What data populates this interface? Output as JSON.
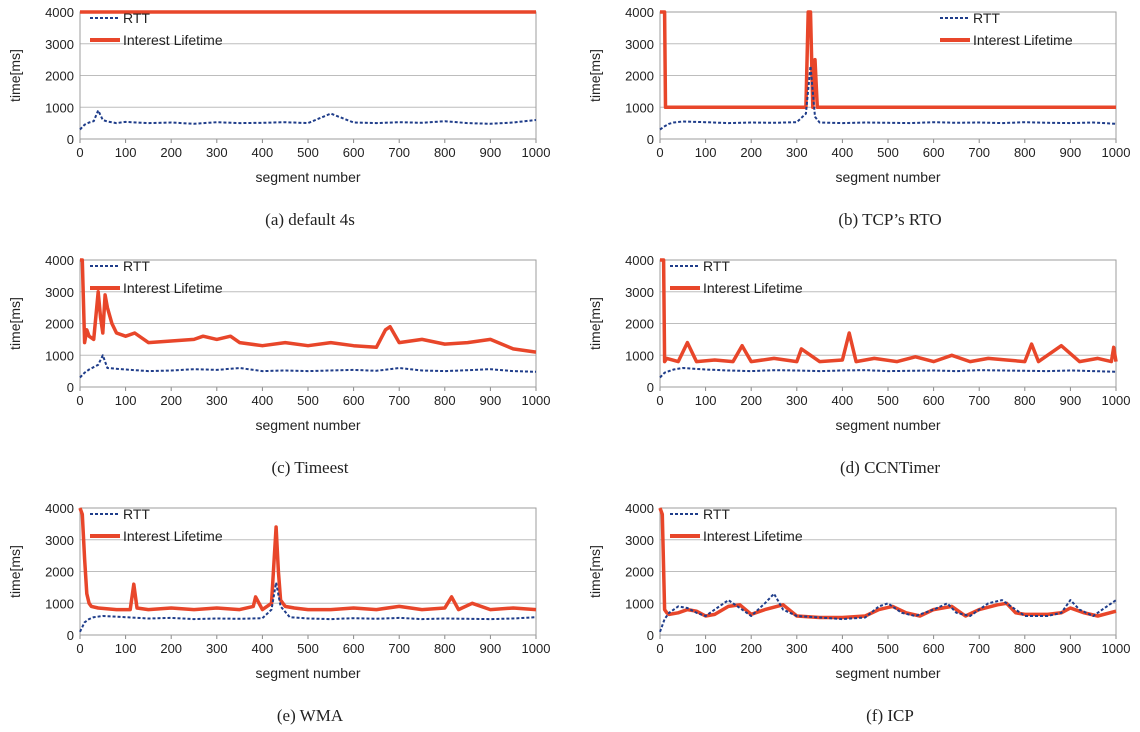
{
  "chart_data": [
    {
      "type": "line",
      "caption": "(a) default 4s",
      "xlabel": "segment number",
      "ylabel": "time[ms]",
      "xlim": [
        0,
        1000
      ],
      "ylim": [
        0,
        4000
      ],
      "xticks": [
        "0",
        "100",
        "200",
        "300",
        "400",
        "500",
        "600",
        "700",
        "800",
        "900",
        "1000"
      ],
      "yticks": [
        "0",
        "1000",
        "2000",
        "3000",
        "4000"
      ],
      "grid": true,
      "legend_position": "top-left",
      "series": [
        {
          "name": "RTT",
          "color": "#1f3d8a",
          "style": "dashed",
          "x": [
            0,
            10,
            20,
            30,
            40,
            50,
            60,
            80,
            100,
            150,
            200,
            250,
            300,
            350,
            400,
            450,
            500,
            550,
            600,
            650,
            700,
            750,
            800,
            850,
            900,
            950,
            1000
          ],
          "y": [
            300,
            450,
            520,
            560,
            900,
            600,
            550,
            500,
            540,
            500,
            520,
            480,
            530,
            500,
            510,
            530,
            500,
            800,
            520,
            500,
            530,
            510,
            560,
            500,
            480,
            520,
            600
          ]
        },
        {
          "name": "Interest Lifetime",
          "color": "#e8462a",
          "style": "solid",
          "x": [
            0,
            1000
          ],
          "y": [
            4000,
            4000
          ]
        }
      ]
    },
    {
      "type": "line",
      "caption": "(b) TCP’s RTO",
      "xlabel": "segment number",
      "ylabel": "time[ms]",
      "xlim": [
        0,
        1000
      ],
      "ylim": [
        0,
        4000
      ],
      "xticks": [
        "0",
        "100",
        "200",
        "300",
        "400",
        "500",
        "600",
        "700",
        "800",
        "900",
        "1000"
      ],
      "yticks": [
        "0",
        "1000",
        "2000",
        "3000",
        "4000"
      ],
      "grid": true,
      "legend_position": "top-right",
      "series": [
        {
          "name": "RTT",
          "color": "#1f3d8a",
          "style": "dashed",
          "x": [
            0,
            10,
            20,
            30,
            50,
            100,
            150,
            200,
            250,
            300,
            320,
            330,
            340,
            350,
            400,
            450,
            500,
            550,
            600,
            650,
            700,
            750,
            800,
            850,
            900,
            950,
            1000
          ],
          "y": [
            300,
            400,
            480,
            520,
            550,
            530,
            500,
            520,
            510,
            530,
            800,
            2300,
            700,
            520,
            500,
            520,
            510,
            500,
            530,
            510,
            520,
            500,
            530,
            510,
            500,
            520,
            480
          ]
        },
        {
          "name": "Interest Lifetime",
          "color": "#e8462a",
          "style": "solid",
          "x": [
            0,
            10,
            12,
            320,
            325,
            330,
            335,
            340,
            345,
            1000
          ],
          "y": [
            4000,
            4000,
            1000,
            1000,
            4000,
            4000,
            1000,
            2500,
            1000,
            1000
          ]
        }
      ]
    },
    {
      "type": "line",
      "caption": "(c) Timeest",
      "xlabel": "segment number",
      "ylabel": "time[ms]",
      "xlim": [
        0,
        1000
      ],
      "ylim": [
        0,
        4000
      ],
      "xticks": [
        "0",
        "100",
        "200",
        "300",
        "400",
        "500",
        "600",
        "700",
        "800",
        "900",
        "1000"
      ],
      "yticks": [
        "0",
        "1000",
        "2000",
        "3000",
        "4000"
      ],
      "grid": true,
      "legend_position": "top-left",
      "series": [
        {
          "name": "RTT",
          "color": "#1f3d8a",
          "style": "dashed",
          "x": [
            0,
            10,
            20,
            40,
            50,
            60,
            100,
            150,
            200,
            250,
            300,
            350,
            400,
            450,
            500,
            550,
            600,
            650,
            700,
            750,
            800,
            850,
            900,
            950,
            1000
          ],
          "y": [
            300,
            450,
            550,
            700,
            1000,
            600,
            550,
            500,
            520,
            560,
            540,
            600,
            500,
            520,
            500,
            520,
            540,
            510,
            600,
            520,
            500,
            530,
            560,
            500,
            480
          ]
        },
        {
          "name": "Interest Lifetime",
          "color": "#e8462a",
          "style": "solid",
          "x": [
            0,
            5,
            10,
            15,
            20,
            30,
            40,
            45,
            50,
            55,
            60,
            70,
            80,
            100,
            120,
            150,
            200,
            250,
            270,
            300,
            330,
            350,
            400,
            450,
            500,
            550,
            600,
            650,
            670,
            680,
            700,
            750,
            800,
            850,
            900,
            950,
            1000
          ],
          "y": [
            4000,
            4000,
            1400,
            1800,
            1600,
            1500,
            3000,
            2200,
            1700,
            2900,
            2500,
            2000,
            1700,
            1600,
            1700,
            1400,
            1450,
            1500,
            1600,
            1500,
            1600,
            1400,
            1300,
            1400,
            1300,
            1400,
            1300,
            1250,
            1800,
            1900,
            1400,
            1500,
            1350,
            1400,
            1500,
            1200,
            1100
          ]
        }
      ]
    },
    {
      "type": "line",
      "caption": "(d) CCNTimer",
      "xlabel": "segment number",
      "ylabel": "time[ms]",
      "xlim": [
        0,
        1000
      ],
      "ylim": [
        0,
        4000
      ],
      "xticks": [
        "0",
        "100",
        "200",
        "300",
        "400",
        "500",
        "600",
        "700",
        "800",
        "900",
        "1000"
      ],
      "yticks": [
        "0",
        "1000",
        "2000",
        "3000",
        "4000"
      ],
      "grid": true,
      "legend_position": "top-left",
      "series": [
        {
          "name": "RTT",
          "color": "#1f3d8a",
          "style": "dashed",
          "x": [
            0,
            10,
            20,
            30,
            50,
            100,
            150,
            200,
            250,
            300,
            350,
            400,
            450,
            500,
            550,
            600,
            650,
            700,
            750,
            800,
            850,
            900,
            950,
            1000
          ],
          "y": [
            300,
            450,
            500,
            550,
            600,
            550,
            520,
            500,
            530,
            520,
            500,
            520,
            530,
            500,
            510,
            520,
            500,
            530,
            520,
            510,
            500,
            520,
            500,
            480
          ]
        },
        {
          "name": "Interest Lifetime",
          "color": "#e8462a",
          "style": "solid",
          "x": [
            0,
            8,
            10,
            15,
            40,
            60,
            80,
            120,
            160,
            180,
            200,
            250,
            300,
            310,
            350,
            400,
            415,
            430,
            470,
            520,
            560,
            600,
            640,
            680,
            720,
            760,
            800,
            815,
            830,
            880,
            920,
            960,
            990,
            995,
            1000
          ],
          "y": [
            4000,
            4000,
            800,
            900,
            800,
            1400,
            800,
            850,
            800,
            1300,
            800,
            900,
            800,
            1200,
            800,
            850,
            1700,
            800,
            900,
            800,
            950,
            800,
            1000,
            800,
            900,
            850,
            800,
            1350,
            800,
            1300,
            800,
            900,
            800,
            1250,
            800
          ]
        }
      ]
    },
    {
      "type": "line",
      "caption": "(e) WMA",
      "xlabel": "segment number",
      "ylabel": "time[ms]",
      "xlim": [
        0,
        1000
      ],
      "ylim": [
        0,
        4000
      ],
      "xticks": [
        "0",
        "100",
        "200",
        "300",
        "400",
        "500",
        "600",
        "700",
        "800",
        "900",
        "1000"
      ],
      "yticks": [
        "0",
        "1000",
        "2000",
        "3000",
        "4000"
      ],
      "grid": true,
      "legend_position": "top-left",
      "series": [
        {
          "name": "RTT",
          "color": "#1f3d8a",
          "style": "dashed",
          "x": [
            0,
            10,
            20,
            30,
            50,
            100,
            150,
            200,
            250,
            300,
            350,
            400,
            420,
            430,
            440,
            460,
            500,
            550,
            600,
            650,
            700,
            750,
            800,
            850,
            900,
            950,
            1000
          ],
          "y": [
            100,
            400,
            500,
            560,
            600,
            560,
            520,
            540,
            500,
            520,
            510,
            530,
            800,
            1650,
            900,
            560,
            520,
            500,
            530,
            510,
            540,
            500,
            520,
            510,
            500,
            520,
            560
          ]
        },
        {
          "name": "Interest Lifetime",
          "color": "#e8462a",
          "style": "solid",
          "x": [
            0,
            5,
            10,
            15,
            20,
            25,
            40,
            80,
            110,
            118,
            125,
            150,
            200,
            250,
            300,
            350,
            380,
            385,
            400,
            420,
            430,
            435,
            440,
            450,
            470,
            500,
            550,
            600,
            650,
            700,
            750,
            800,
            815,
            830,
            860,
            900,
            950,
            1000
          ],
          "y": [
            4000,
            3800,
            2400,
            1300,
            1000,
            900,
            850,
            800,
            800,
            1600,
            850,
            800,
            850,
            800,
            850,
            800,
            900,
            1200,
            800,
            1000,
            3400,
            2000,
            1100,
            900,
            850,
            800,
            800,
            850,
            800,
            900,
            800,
            850,
            1200,
            800,
            1000,
            800,
            850,
            800
          ]
        }
      ]
    },
    {
      "type": "line",
      "caption": "(f) ICP",
      "xlabel": "segment number",
      "ylabel": "time[ms]",
      "xlim": [
        0,
        1000
      ],
      "ylim": [
        0,
        4000
      ],
      "xticks": [
        "0",
        "100",
        "200",
        "300",
        "400",
        "500",
        "600",
        "700",
        "800",
        "900",
        "1000"
      ],
      "yticks": [
        "0",
        "1000",
        "2000",
        "3000",
        "4000"
      ],
      "grid": true,
      "legend_position": "top-left",
      "series": [
        {
          "name": "RTT",
          "color": "#1f3d8a",
          "style": "dashed",
          "x": [
            0,
            10,
            20,
            40,
            60,
            80,
            100,
            120,
            150,
            170,
            200,
            230,
            250,
            270,
            300,
            350,
            400,
            450,
            480,
            500,
            530,
            560,
            600,
            630,
            650,
            680,
            720,
            750,
            780,
            800,
            850,
            880,
            900,
            920,
            950,
            980,
            1000
          ],
          "y": [
            100,
            500,
            700,
            900,
            850,
            700,
            600,
            800,
            1100,
            900,
            600,
            1000,
            1300,
            800,
            600,
            550,
            500,
            550,
            900,
            1000,
            700,
            600,
            800,
            1000,
            700,
            600,
            1000,
            1100,
            800,
            600,
            600,
            700,
            1100,
            800,
            600,
            900,
            1100
          ]
        },
        {
          "name": "Interest Lifetime",
          "color": "#e8462a",
          "style": "solid",
          "x": [
            0,
            5,
            10,
            15,
            20,
            40,
            60,
            80,
            100,
            120,
            150,
            175,
            200,
            230,
            270,
            300,
            350,
            400,
            450,
            480,
            510,
            540,
            570,
            600,
            640,
            670,
            700,
            740,
            760,
            780,
            800,
            850,
            880,
            900,
            930,
            960,
            1000
          ],
          "y": [
            4000,
            3800,
            800,
            700,
            650,
            700,
            800,
            750,
            600,
            650,
            900,
            950,
            650,
            800,
            950,
            600,
            550,
            550,
            600,
            800,
            900,
            700,
            600,
            800,
            900,
            600,
            800,
            950,
            1000,
            700,
            650,
            650,
            700,
            850,
            700,
            600,
            750
          ]
        }
      ]
    }
  ]
}
